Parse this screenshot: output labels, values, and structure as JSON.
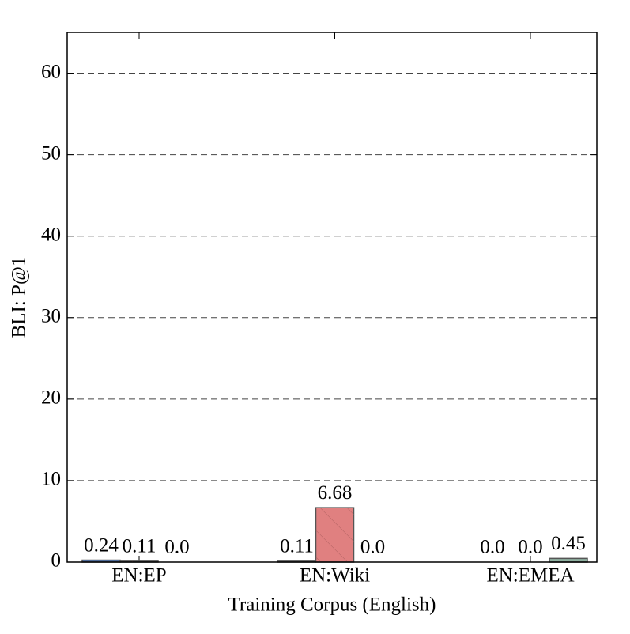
{
  "chart_data": {
    "type": "bar",
    "x_label": "Training Corpus (English)",
    "y_label": "BLI: P@1",
    "categories": [
      "EN:EP",
      "EN:Wiki",
      "EN:EMEA"
    ],
    "series": [
      {
        "color": "#4c72b0",
        "values": [
          0.24,
          0.11,
          0
        ],
        "value_labels": [
          "0.24",
          "0.11",
          "0.0"
        ]
      },
      {
        "color": "#e08080",
        "values": [
          0.11,
          6.68,
          0
        ],
        "value_labels": [
          "0.11",
          "6.68",
          "0.0"
        ]
      },
      {
        "color": "#8fb0a0",
        "values": [
          0,
          0,
          0.45
        ],
        "value_labels": [
          "0.0",
          "0.0",
          "0.45"
        ]
      }
    ],
    "ylim": [
      0,
      65
    ],
    "yticks": [
      0,
      10,
      20,
      30,
      40,
      50,
      60
    ],
    "grid": true
  }
}
